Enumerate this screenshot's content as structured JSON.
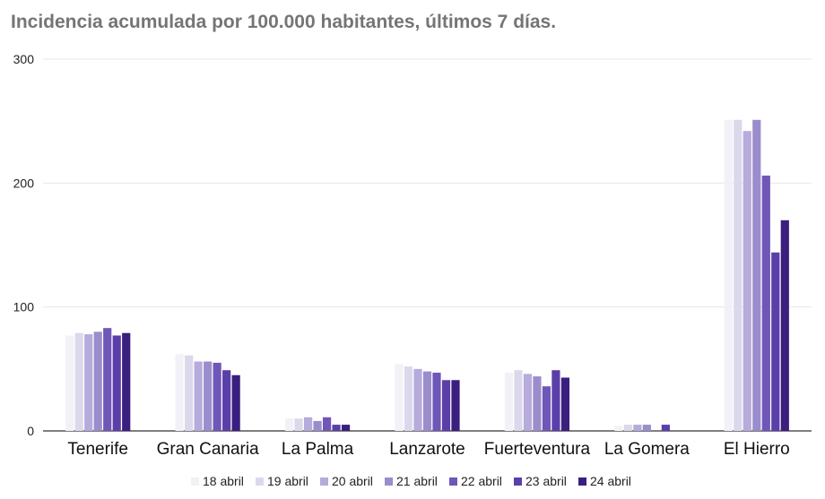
{
  "chart_data": {
    "type": "bar",
    "title": "Incidencia acumulada por 100.000 habitantes, últimos 7 días.",
    "xlabel": "",
    "ylabel": "",
    "ylim": [
      0,
      300
    ],
    "yticks": [
      0,
      100,
      200,
      300
    ],
    "grid": true,
    "legend_position": "bottom",
    "categories": [
      "Tenerife",
      "Gran Canaria",
      "La Palma",
      "Lanzarote",
      "Fuerteventura",
      "La Gomera",
      "El Hierro"
    ],
    "series": [
      {
        "name": "18 abril",
        "color": "#f2f1f7",
        "values": [
          77,
          62,
          10,
          54,
          47,
          4,
          251
        ]
      },
      {
        "name": "19 abril",
        "color": "#dcd8ec",
        "values": [
          79,
          61,
          10,
          52,
          49,
          5,
          251
        ]
      },
      {
        "name": "20 abril",
        "color": "#b6abdb",
        "values": [
          78,
          56,
          11,
          50,
          46,
          5,
          242
        ]
      },
      {
        "name": "21 abril",
        "color": "#9b8dcc",
        "values": [
          80,
          56,
          8,
          48,
          44,
          5,
          251
        ]
      },
      {
        "name": "22 abril",
        "color": "#6f57b8",
        "values": [
          83,
          55,
          11,
          47,
          36,
          0,
          206
        ]
      },
      {
        "name": "23 abril",
        "color": "#5b3fa8",
        "values": [
          77,
          49,
          5,
          41,
          49,
          5,
          144
        ]
      },
      {
        "name": "24 abril",
        "color": "#3a1f7e",
        "values": [
          79,
          45,
          5,
          41,
          43,
          0,
          170
        ]
      }
    ]
  }
}
